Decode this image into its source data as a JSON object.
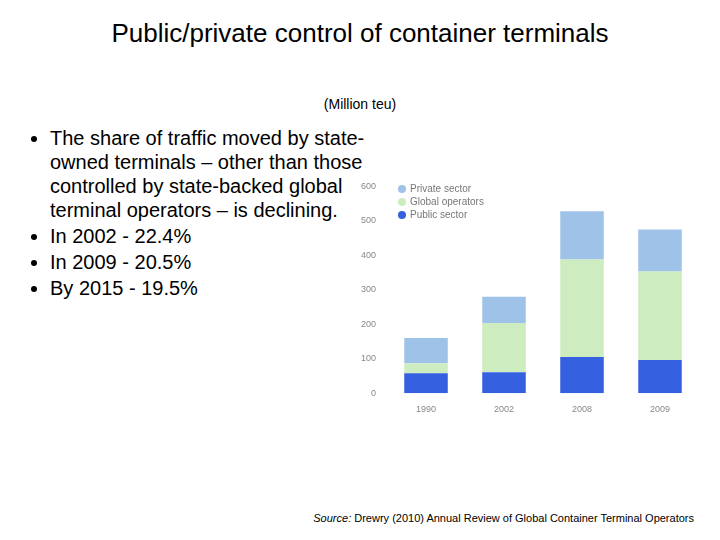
{
  "slide": {
    "title": "Public/private control of container terminals",
    "subtitle": "(Million teu)",
    "bullets": [
      "The share of traffic moved by state-owned terminals – other than those controlled by state-backed global terminal operators – is declining.",
      "In 2002 - 22.4%",
      "In 2009 - 20.5%",
      "By 2015 - 19.5%"
    ],
    "source_label": "Source:",
    "source": "Drewry (2010) Annual Review of Global Container Terminal Operators"
  },
  "chart_data": {
    "type": "bar",
    "stacked": true,
    "categories": [
      "1990",
      "2002",
      "2008",
      "2009"
    ],
    "series": [
      {
        "name": "Public sector",
        "color": "#3560e0",
        "values": [
          58,
          61,
          105,
          96
        ]
      },
      {
        "name": "Global operators",
        "color": "#cdecc0",
        "values": [
          29,
          143,
          283,
          257
        ]
      },
      {
        "name": "Private sector",
        "color": "#9fc2e8",
        "values": [
          73,
          76,
          140,
          122
        ]
      }
    ],
    "ylim": [
      0,
      600
    ],
    "yticks": [
      0,
      100,
      200,
      300,
      400,
      500,
      600
    ],
    "grid": false,
    "legend": "top-left"
  }
}
